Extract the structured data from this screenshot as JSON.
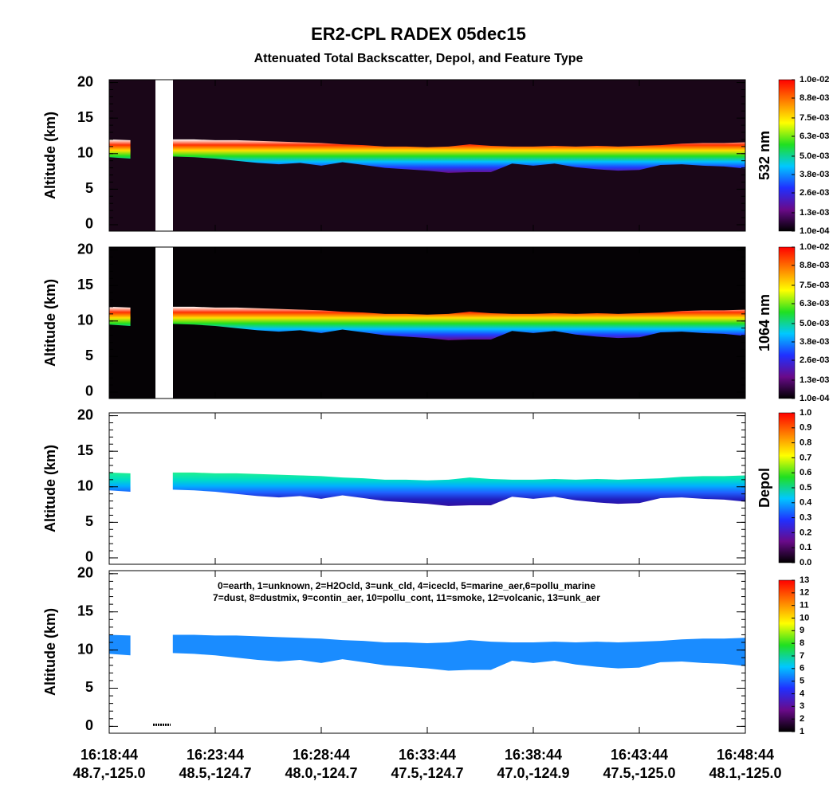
{
  "title": "ER2-CPL RADEX 05dec15",
  "subtitle": "Attenuated Total Backscatter, Depol, and Feature Type",
  "xtick_labels": [
    {
      "time": "16:18:44",
      "location": "48.7,-125.0"
    },
    {
      "time": "16:23:44",
      "location": "48.5,-124.7"
    },
    {
      "time": "16:28:44",
      "location": "48.0,-124.7"
    },
    {
      "time": "16:33:44",
      "location": "47.5,-124.7"
    },
    {
      "time": "16:38:44",
      "location": "47.0,-124.9"
    },
    {
      "time": "16:43:44",
      "location": "47.5,-125.0"
    },
    {
      "time": "16:48:44",
      "location": "48.1,-125.0"
    }
  ],
  "chart_data": [
    {
      "type": "band",
      "y_label": "Altitude (km)",
      "colorbar_label": "532 nm",
      "ylim": [
        -0.9,
        20.4
      ],
      "yticks": [
        0,
        5,
        10,
        15,
        20
      ],
      "x": [
        "16:18:44",
        "16:19:44",
        "16:20:44",
        "16:21:44",
        "16:22:44",
        "16:23:44",
        "16:24:44",
        "16:25:44",
        "16:26:44",
        "16:27:44",
        "16:28:44",
        "16:29:44",
        "16:30:44",
        "16:31:44",
        "16:32:44",
        "16:33:44",
        "16:34:44",
        "16:35:44",
        "16:36:44",
        "16:37:44",
        "16:38:44",
        "16:39:44",
        "16:40:44",
        "16:41:44",
        "16:42:44",
        "16:43:44",
        "16:44:44",
        "16:45:44",
        "16:46:44",
        "16:47:44",
        "16:48:44"
      ],
      "layer_top": [
        12.0,
        11.9,
        null,
        12.0,
        12.0,
        11.9,
        11.9,
        11.8,
        11.7,
        11.6,
        11.5,
        11.3,
        11.2,
        11.0,
        11.0,
        10.9,
        11.0,
        11.3,
        11.1,
        11.0,
        11.0,
        11.1,
        11.0,
        11.1,
        11.0,
        11.1,
        11.2,
        11.4,
        11.5,
        11.5,
        11.6
      ],
      "layer_base": [
        9.5,
        9.3,
        null,
        9.6,
        9.5,
        9.3,
        9.0,
        8.7,
        8.5,
        8.7,
        8.3,
        8.8,
        8.4,
        8.0,
        7.8,
        7.6,
        7.3,
        7.4,
        7.4,
        8.6,
        8.3,
        8.6,
        8.1,
        7.8,
        7.6,
        7.7,
        8.4,
        8.5,
        8.3,
        8.2,
        7.9
      ],
      "background": "#1a0618",
      "band_colors": [
        "#ffffff",
        "#ff3000",
        "#ffe000",
        "#20e020",
        "#00c0ff",
        "#2040ff",
        "#6a0a8a"
      ],
      "clim": [
        0.0001,
        0.01
      ],
      "colorbar_ticks": [
        {
          "value": 0.0001,
          "label": "1.0e-04"
        },
        {
          "value": 0.0013,
          "label": "1.3e-03"
        },
        {
          "value": 0.0026,
          "label": "2.6e-03"
        },
        {
          "value": 0.0038,
          "label": "3.8e-03"
        },
        {
          "value": 0.005,
          "label": "5.0e-03"
        },
        {
          "value": 0.0063,
          "label": "6.3e-03"
        },
        {
          "value": 0.0075,
          "label": "7.5e-03"
        },
        {
          "value": 0.0088,
          "label": "8.8e-03"
        },
        {
          "value": 0.01,
          "label": "1.0e-02"
        }
      ],
      "colormap": [
        "#000000",
        "#6a0a8a",
        "#2030ff",
        "#00c8ff",
        "#20e020",
        "#ffff00",
        "#ff8000",
        "#ff0000"
      ]
    },
    {
      "type": "band",
      "y_label": "Altitude (km)",
      "colorbar_label": "1064 nm",
      "ylim": [
        -0.9,
        20.4
      ],
      "yticks": [
        0,
        5,
        10,
        15,
        20
      ],
      "x": [
        "16:18:44",
        "16:19:44",
        "16:20:44",
        "16:21:44",
        "16:22:44",
        "16:23:44",
        "16:24:44",
        "16:25:44",
        "16:26:44",
        "16:27:44",
        "16:28:44",
        "16:29:44",
        "16:30:44",
        "16:31:44",
        "16:32:44",
        "16:33:44",
        "16:34:44",
        "16:35:44",
        "16:36:44",
        "16:37:44",
        "16:38:44",
        "16:39:44",
        "16:40:44",
        "16:41:44",
        "16:42:44",
        "16:43:44",
        "16:44:44",
        "16:45:44",
        "16:46:44",
        "16:47:44",
        "16:48:44"
      ],
      "layer_top": [
        12.0,
        11.9,
        null,
        12.0,
        12.0,
        11.9,
        11.9,
        11.8,
        11.7,
        11.6,
        11.5,
        11.3,
        11.2,
        11.0,
        11.0,
        10.9,
        11.0,
        11.3,
        11.1,
        11.0,
        11.0,
        11.1,
        11.0,
        11.1,
        11.0,
        11.1,
        11.2,
        11.4,
        11.5,
        11.5,
        11.6
      ],
      "layer_base": [
        9.5,
        9.3,
        null,
        9.6,
        9.5,
        9.3,
        9.0,
        8.7,
        8.5,
        8.7,
        8.3,
        8.8,
        8.4,
        8.0,
        7.8,
        7.6,
        7.3,
        7.4,
        7.4,
        8.6,
        8.3,
        8.6,
        8.1,
        7.8,
        7.6,
        7.7,
        8.4,
        8.5,
        8.3,
        8.2,
        7.9
      ],
      "background": "#050205",
      "band_colors": [
        "#ffffff",
        "#ff3000",
        "#ffe000",
        "#20e020",
        "#00c0ff",
        "#2040ff",
        "#6a0a8a"
      ],
      "clim": [
        0.0001,
        0.01
      ],
      "colorbar_ticks": [
        {
          "value": 0.0001,
          "label": "1.0e-04"
        },
        {
          "value": 0.0013,
          "label": "1.3e-03"
        },
        {
          "value": 0.0026,
          "label": "2.6e-03"
        },
        {
          "value": 0.0038,
          "label": "3.8e-03"
        },
        {
          "value": 0.005,
          "label": "5.0e-03"
        },
        {
          "value": 0.0063,
          "label": "6.3e-03"
        },
        {
          "value": 0.0075,
          "label": "7.5e-03"
        },
        {
          "value": 0.0088,
          "label": "8.8e-03"
        },
        {
          "value": 0.01,
          "label": "1.0e-02"
        }
      ],
      "colormap": [
        "#000000",
        "#6a0a8a",
        "#2030ff",
        "#00c8ff",
        "#20e020",
        "#ffff00",
        "#ff8000",
        "#ff0000"
      ]
    },
    {
      "type": "band",
      "y_label": "Altitude (km)",
      "colorbar_label": "Depol",
      "ylim": [
        -0.9,
        20.4
      ],
      "yticks": [
        0,
        5,
        10,
        15,
        20
      ],
      "x": [
        "16:18:44",
        "16:19:44",
        "16:20:44",
        "16:21:44",
        "16:22:44",
        "16:23:44",
        "16:24:44",
        "16:25:44",
        "16:26:44",
        "16:27:44",
        "16:28:44",
        "16:29:44",
        "16:30:44",
        "16:31:44",
        "16:32:44",
        "16:33:44",
        "16:34:44",
        "16:35:44",
        "16:36:44",
        "16:37:44",
        "16:38:44",
        "16:39:44",
        "16:40:44",
        "16:41:44",
        "16:42:44",
        "16:43:44",
        "16:44:44",
        "16:45:44",
        "16:46:44",
        "16:47:44",
        "16:48:44"
      ],
      "layer_top": [
        12.0,
        11.9,
        null,
        12.0,
        12.0,
        11.9,
        11.9,
        11.8,
        11.7,
        11.6,
        11.5,
        11.3,
        11.2,
        11.0,
        11.0,
        10.9,
        11.0,
        11.3,
        11.1,
        11.0,
        11.0,
        11.1,
        11.0,
        11.1,
        11.0,
        11.1,
        11.2,
        11.4,
        11.5,
        11.5,
        11.6
      ],
      "layer_base": [
        9.5,
        9.3,
        null,
        9.6,
        9.5,
        9.3,
        9.0,
        8.7,
        8.5,
        8.7,
        8.3,
        8.8,
        8.4,
        8.0,
        7.8,
        7.6,
        7.3,
        7.4,
        7.4,
        8.6,
        8.3,
        8.6,
        8.1,
        7.8,
        7.6,
        7.7,
        8.4,
        8.5,
        8.3,
        8.2,
        7.9
      ],
      "background": "#ffffff",
      "band_colors": [
        "#20f090",
        "#00e0c0",
        "#00b0ff",
        "#2060ff",
        "#2020c0",
        "#3010a0"
      ],
      "clim": [
        0,
        1
      ],
      "colorbar_ticks": [
        {
          "value": 0,
          "label": "0.0"
        },
        {
          "value": 0.1,
          "label": "0.1"
        },
        {
          "value": 0.2,
          "label": "0.2"
        },
        {
          "value": 0.3,
          "label": "0.3"
        },
        {
          "value": 0.4,
          "label": "0.4"
        },
        {
          "value": 0.5,
          "label": "0.5"
        },
        {
          "value": 0.6,
          "label": "0.6"
        },
        {
          "value": 0.7,
          "label": "0.7"
        },
        {
          "value": 0.8,
          "label": "0.8"
        },
        {
          "value": 0.9,
          "label": "0.9"
        },
        {
          "value": 1,
          "label": "1.0"
        }
      ],
      "colormap": [
        "#000000",
        "#6a0a8a",
        "#2030ff",
        "#00c8ff",
        "#20e020",
        "#ffff00",
        "#ff8000",
        "#ff0000"
      ]
    },
    {
      "type": "band",
      "y_label": "Altitude (km)",
      "annotation": [
        "0=earth, 1=unknown, 2=H2Ocld, 3=unk_cld, 4=icecld, 5=marine_aer,6=pollu_marine",
        "7=dust, 8=dustmix, 9=contin_aer, 10=pollu_cont, 11=smoke, 12=volcanic, 13=unk_aer"
      ],
      "ylim": [
        -0.9,
        20.4
      ],
      "yticks": [
        0,
        5,
        10,
        15,
        20
      ],
      "x": [
        "16:18:44",
        "16:19:44",
        "16:20:44",
        "16:21:44",
        "16:22:44",
        "16:23:44",
        "16:24:44",
        "16:25:44",
        "16:26:44",
        "16:27:44",
        "16:28:44",
        "16:29:44",
        "16:30:44",
        "16:31:44",
        "16:32:44",
        "16:33:44",
        "16:34:44",
        "16:35:44",
        "16:36:44",
        "16:37:44",
        "16:38:44",
        "16:39:44",
        "16:40:44",
        "16:41:44",
        "16:42:44",
        "16:43:44",
        "16:44:44",
        "16:45:44",
        "16:46:44",
        "16:47:44",
        "16:48:44"
      ],
      "layer_top": [
        12.0,
        11.9,
        null,
        12.0,
        12.0,
        11.9,
        11.9,
        11.8,
        11.7,
        11.6,
        11.5,
        11.3,
        11.2,
        11.0,
        11.0,
        10.9,
        11.0,
        11.3,
        11.1,
        11.0,
        11.0,
        11.1,
        11.0,
        11.1,
        11.0,
        11.1,
        11.2,
        11.4,
        11.5,
        11.5,
        11.6
      ],
      "layer_base": [
        9.5,
        9.3,
        null,
        9.6,
        9.5,
        9.3,
        9.0,
        8.7,
        8.5,
        8.7,
        8.3,
        8.8,
        8.4,
        8.0,
        7.8,
        7.6,
        7.3,
        7.4,
        7.4,
        8.6,
        8.3,
        8.6,
        8.1,
        7.8,
        7.6,
        7.7,
        8.4,
        8.5,
        8.3,
        8.2,
        7.9
      ],
      "background": "#ffffff",
      "band_colors": [
        "#1a8cff",
        "#1a8cff"
      ],
      "clim": [
        1,
        13
      ],
      "colorbar_ticks": [
        1,
        2,
        3,
        4,
        5,
        6,
        7,
        8,
        9,
        10,
        11,
        12,
        13
      ],
      "colormap": [
        "#000000",
        "#6a0a8a",
        "#2030ff",
        "#00c8ff",
        "#20e020",
        "#ffff00",
        "#ff8000",
        "#ff0000"
      ]
    }
  ]
}
